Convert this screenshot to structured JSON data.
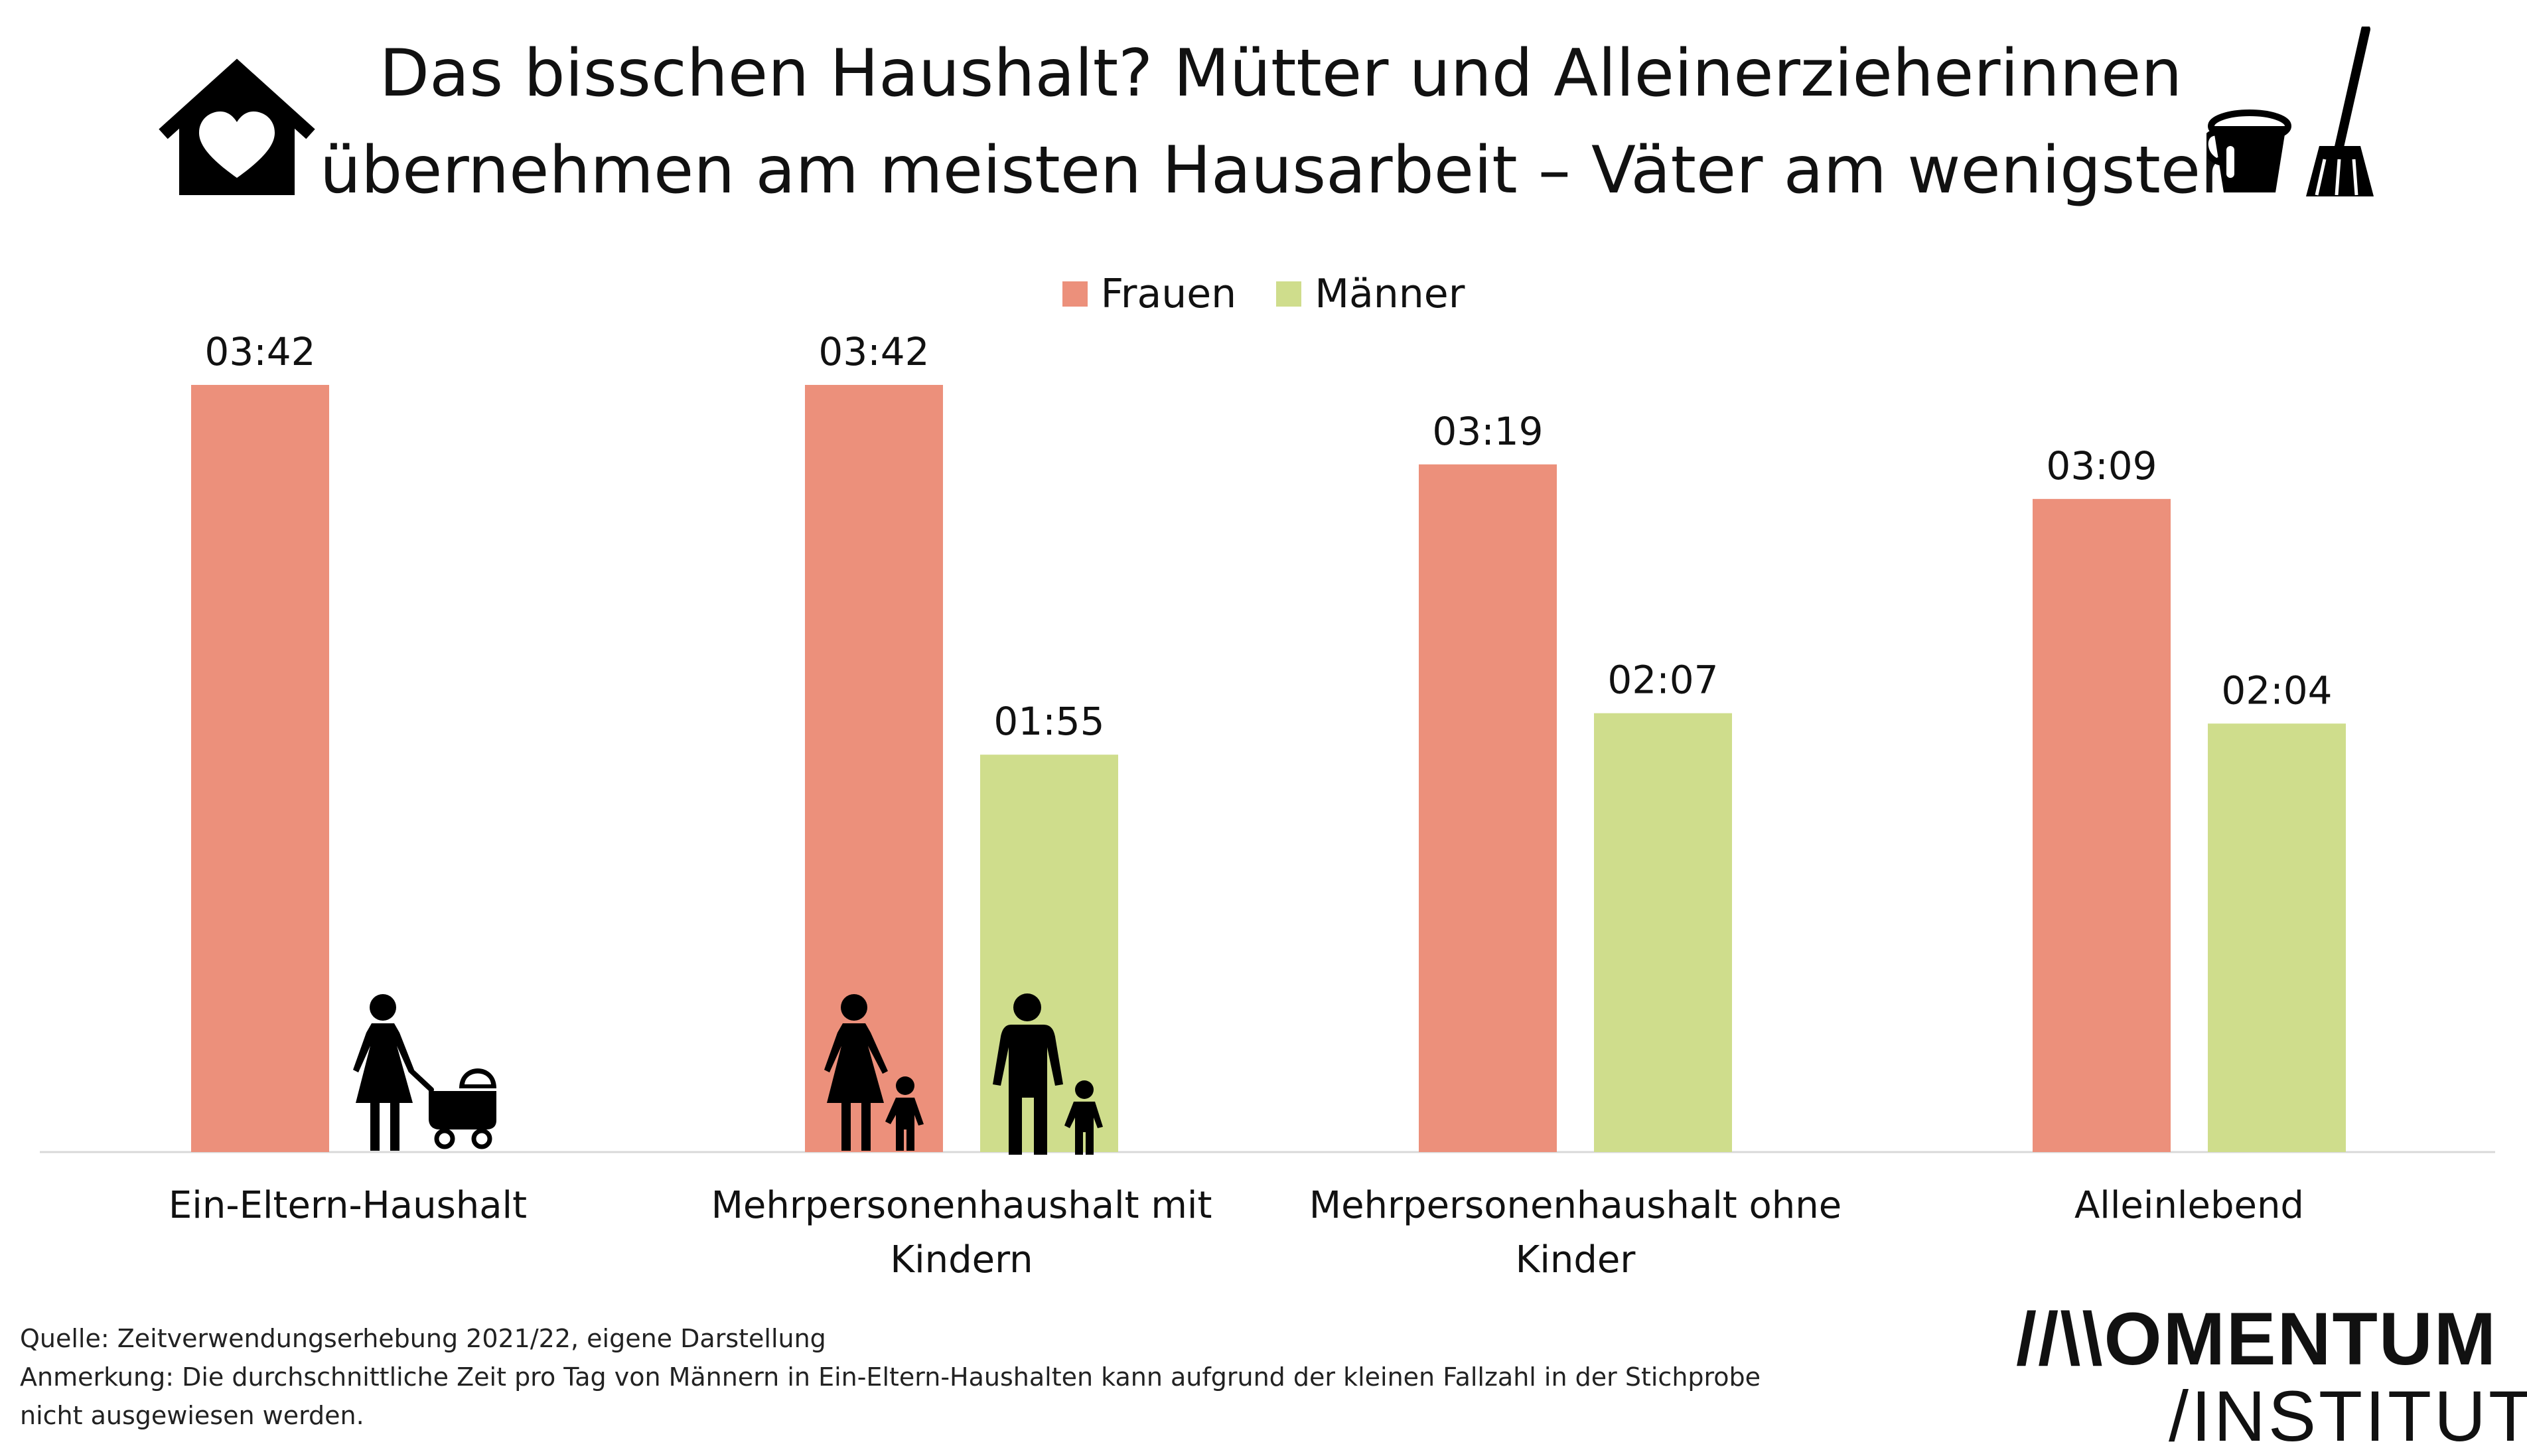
{
  "title": {
    "line1": "Das bisschen Haushalt? Mütter und Alleinerzieherinnen",
    "line2": "übernehmen am meisten Hausarbeit – Väter am wenigsten"
  },
  "chart_data": {
    "type": "bar",
    "categories": [
      [
        "Ein-Eltern-Haushalt"
      ],
      [
        "Mehrpersonenhaushalt mit",
        "Kindern"
      ],
      [
        "Mehrpersonenhaushalt ohne",
        "Kinder"
      ],
      [
        "Alleinlebend"
      ]
    ],
    "series": [
      {
        "name": "Frauen",
        "color": "#ec907b",
        "values_minutes": [
          222,
          222,
          199,
          189
        ],
        "labels": [
          "03:42",
          "03:42",
          "03:19",
          "03:09"
        ]
      },
      {
        "name": "Männer",
        "color": "#cfdd8c",
        "values_minutes": [
          null,
          115,
          127,
          124
        ],
        "labels": [
          null,
          "01:55",
          "02:07",
          "02:04"
        ]
      }
    ],
    "legend_position": "top-center",
    "grid": false,
    "ylim": [
      0,
      240
    ]
  },
  "footer": {
    "source": "Quelle: Zeitverwendungserhebung 2021/22, eigene Darstellung",
    "note": "Anmerkung: Die durchschnittliche Zeit pro Tag von Männern in Ein-Eltern-Haushalten kann aufgrund der kleinen Fallzahl in der Stichprobe nicht ausgewiesen werden."
  },
  "logo": {
    "line1": "//\\\\OMENTUM",
    "line2": "/INSTITUT"
  },
  "icons": [
    "house-heart-icon",
    "bucket-broom-icon",
    "mother-stroller-icon",
    "mother-child-icon",
    "father-child-icon"
  ]
}
